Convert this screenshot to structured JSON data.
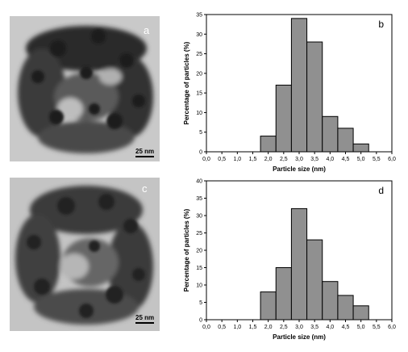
{
  "panels": {
    "a": {
      "letter": "a",
      "scale_label": "25 nm"
    },
    "c": {
      "letter": "c",
      "scale_label": "25 nm"
    }
  },
  "chart_data": [
    {
      "panel": "b",
      "letter": "b",
      "type": "bar",
      "xlabel": "Particle size (nm)",
      "ylabel": "Percentage of particles (%)",
      "xlim": [
        0,
        6
      ],
      "ylim": [
        0,
        35
      ],
      "xticks": [
        "0,0",
        "0,5",
        "1,0",
        "1,5",
        "2,0",
        "2,5",
        "3,0",
        "3,5",
        "4,0",
        "4,5",
        "5,0",
        "5,5",
        "6,0"
      ],
      "yticks": [
        "0",
        "5",
        "10",
        "15",
        "20",
        "25",
        "30",
        "35"
      ],
      "bin_width": 0.5,
      "bins": [
        {
          "start": 1.75,
          "value": 4
        },
        {
          "start": 2.25,
          "value": 17
        },
        {
          "start": 2.75,
          "value": 34
        },
        {
          "start": 3.25,
          "value": 28
        },
        {
          "start": 3.75,
          "value": 9
        },
        {
          "start": 4.25,
          "value": 6
        },
        {
          "start": 4.75,
          "value": 2
        }
      ],
      "bar_color": "#909090"
    },
    {
      "panel": "d",
      "letter": "d",
      "type": "bar",
      "xlabel": "Particle size (nm)",
      "ylabel": "Percentage of particles (%)",
      "xlim": [
        0,
        6
      ],
      "ylim": [
        0,
        40
      ],
      "xticks": [
        "0,0",
        "0,5",
        "1,0",
        "1,5",
        "2,0",
        "2,5",
        "3,0",
        "3,5",
        "4,0",
        "4,5",
        "5,0",
        "5,5",
        "6,0"
      ],
      "yticks": [
        "0",
        "5",
        "10",
        "15",
        "20",
        "25",
        "30",
        "35",
        "40"
      ],
      "bin_width": 0.5,
      "bins": [
        {
          "start": 1.75,
          "value": 8
        },
        {
          "start": 2.25,
          "value": 15
        },
        {
          "start": 2.75,
          "value": 32
        },
        {
          "start": 3.25,
          "value": 23
        },
        {
          "start": 3.75,
          "value": 11
        },
        {
          "start": 4.25,
          "value": 7
        },
        {
          "start": 4.75,
          "value": 4
        }
      ],
      "bar_color": "#909090"
    }
  ]
}
